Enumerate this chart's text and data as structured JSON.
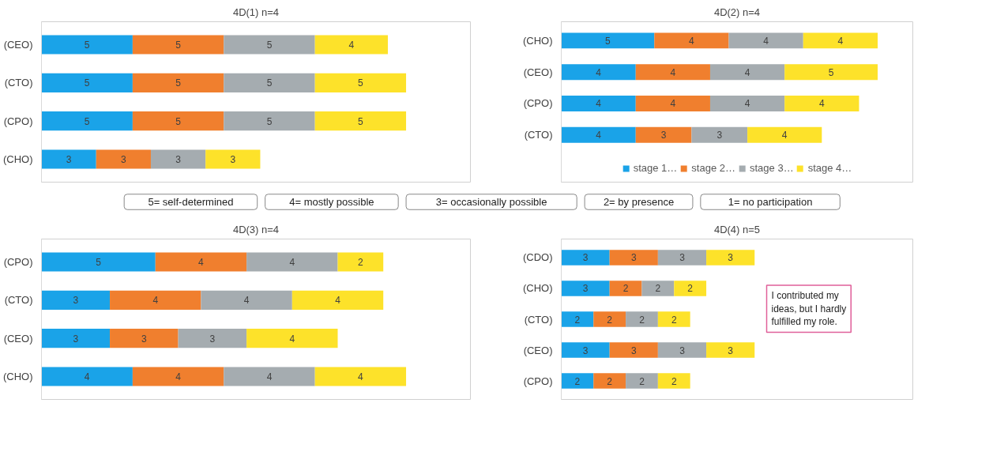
{
  "chart_data": [
    {
      "type": "bar",
      "orientation": "horizontal",
      "stacked": true,
      "data_labels": true,
      "title": "4D(1) n=4",
      "categories": [
        "(CEO)",
        "(CTO)",
        "(CPO)",
        "(CHO)"
      ],
      "series": [
        {
          "color": "#1aa3e8",
          "values": [
            5,
            5,
            5,
            3
          ]
        },
        {
          "color": "#f07f2e",
          "values": [
            5,
            5,
            5,
            3
          ]
        },
        {
          "color": "#a5acb0",
          "values": [
            5,
            5,
            5,
            3
          ]
        },
        {
          "color": "#fde22a",
          "values": [
            4,
            5,
            5,
            3
          ]
        }
      ]
    },
    {
      "type": "bar",
      "orientation": "horizontal",
      "stacked": true,
      "data_labels": true,
      "title": "4D(2) n=4",
      "legend": "bottom",
      "categories": [
        "(CHO)",
        "(CEO)",
        "(CPO)",
        "(CTO)"
      ],
      "series": [
        {
          "name": "stage 1…",
          "color": "#1aa3e8",
          "values": [
            5,
            4,
            4,
            4
          ]
        },
        {
          "name": "stage 2…",
          "color": "#f07f2e",
          "values": [
            4,
            4,
            4,
            3
          ]
        },
        {
          "name": "stage 3…",
          "color": "#a5acb0",
          "values": [
            4,
            4,
            4,
            3
          ]
        },
        {
          "name": "stage 4…",
          "color": "#fde22a",
          "values": [
            4,
            5,
            4,
            4
          ]
        }
      ]
    },
    {
      "type": "other",
      "annotations": [
        "5= self-determined",
        "4= mostly possible",
        "3= occasionally possible",
        "2= by presence",
        "1= no participation"
      ]
    },
    {
      "type": "bar",
      "orientation": "horizontal",
      "stacked": true,
      "data_labels": true,
      "title": "4D(3) n=4",
      "categories": [
        "(CPO)",
        "(CTO)",
        "(CEO)",
        "(CHO)"
      ],
      "series": [
        {
          "color": "#1aa3e8",
          "values": [
            5,
            3,
            3,
            4
          ]
        },
        {
          "color": "#f07f2e",
          "values": [
            4,
            4,
            3,
            4
          ]
        },
        {
          "color": "#a5acb0",
          "values": [
            4,
            4,
            3,
            4
          ]
        },
        {
          "color": "#fde22a",
          "values": [
            2,
            4,
            4,
            4
          ]
        }
      ]
    },
    {
      "type": "bar",
      "orientation": "horizontal",
      "stacked": true,
      "data_labels": true,
      "title": "4D(4) n=5",
      "categories": [
        "(CDO)",
        "(CHO)",
        "(CTO)",
        "(CEO)",
        "(CPO)"
      ],
      "annotations": [
        "I contributed my ideas, but I hardly fulfilled my role."
      ],
      "series": [
        {
          "color": "#1aa3e8",
          "values": [
            3,
            3,
            2,
            3,
            2
          ]
        },
        {
          "color": "#f07f2e",
          "values": [
            3,
            2,
            2,
            3,
            2
          ]
        },
        {
          "color": "#a5acb0",
          "values": [
            3,
            2,
            2,
            3,
            2
          ]
        },
        {
          "color": "#fde22a",
          "values": [
            3,
            2,
            2,
            3,
            2
          ]
        }
      ]
    }
  ]
}
